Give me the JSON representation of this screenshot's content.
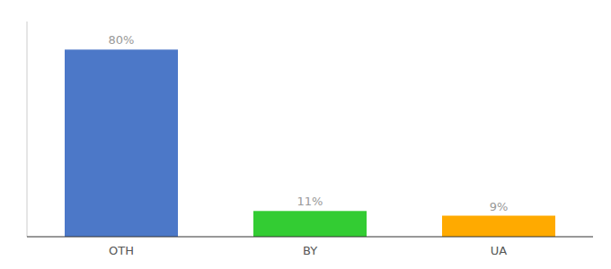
{
  "chart_data": {
    "type": "bar",
    "categories": [
      "OTH",
      "BY",
      "UA"
    ],
    "values": [
      80,
      11,
      9
    ],
    "value_labels": [
      "80%",
      "11%",
      "9%"
    ],
    "colors": [
      "#4c78c8",
      "#33cc33",
      "#ffaa00"
    ],
    "ylim": [
      0,
      92
    ],
    "data_labels": true,
    "tick_labels": "x",
    "grid": false
  }
}
